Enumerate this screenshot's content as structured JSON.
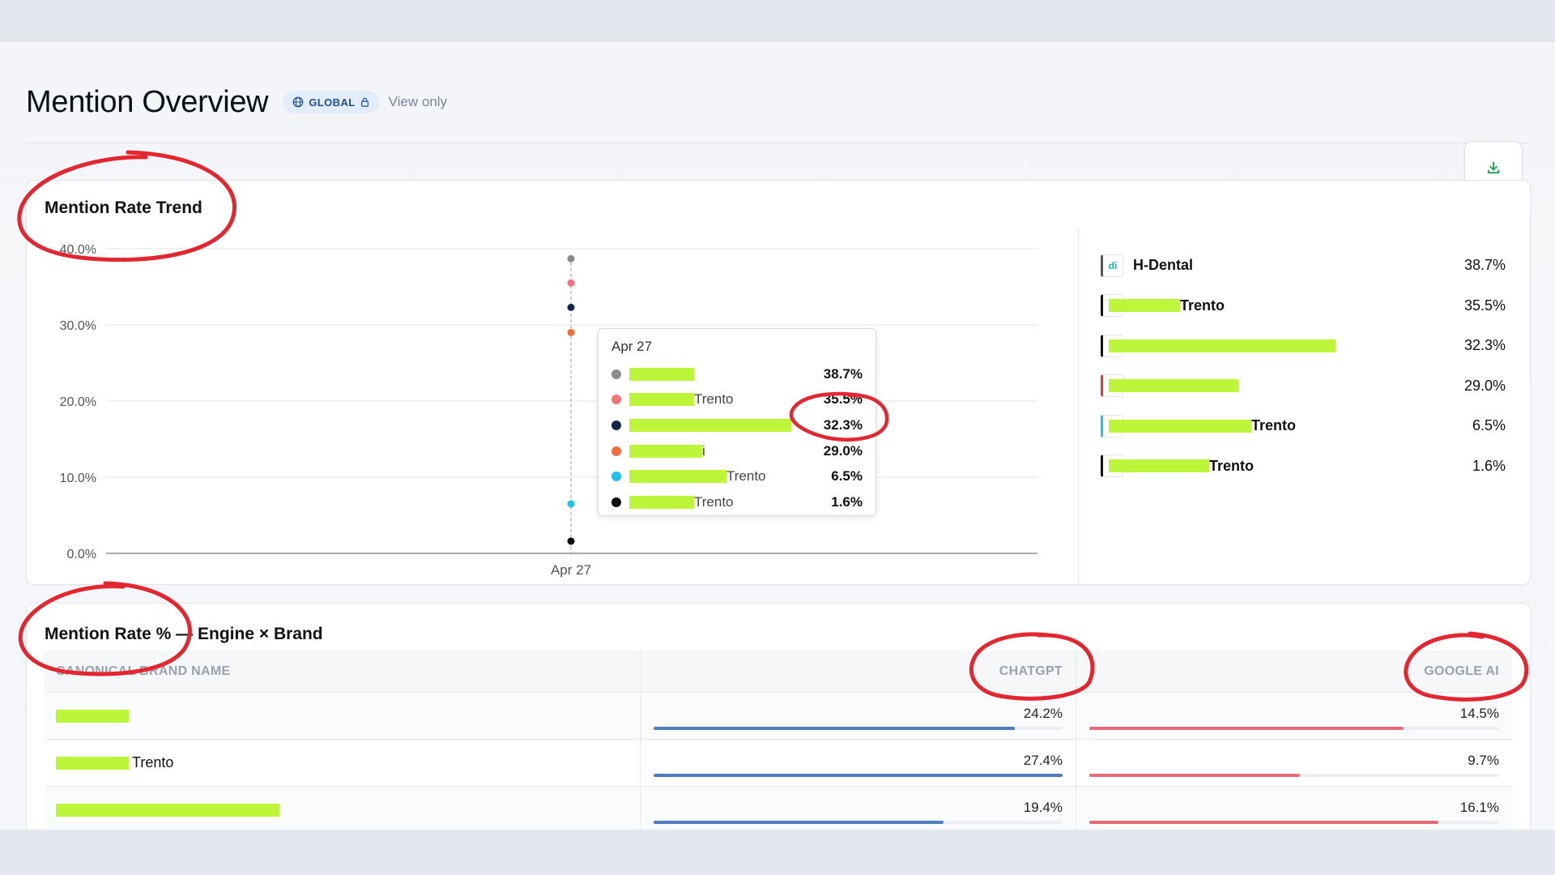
{
  "page": {
    "title": "Mention Overview",
    "scope_badge": "GLOBAL",
    "view_mode": "View only"
  },
  "icons": {
    "export": "download-icon",
    "scope": "globe-icon",
    "lock": "lock-icon"
  },
  "trend": {
    "title": "Mention Rate Trend",
    "tooltip_date": "Apr 27"
  },
  "chart_data": {
    "type": "scatter",
    "title": "Mention Rate Trend",
    "x": [
      "Apr 27"
    ],
    "yticks": [
      "40.0%",
      "30.0%",
      "20.0%",
      "10.0%",
      "0.0%"
    ],
    "ylim": [
      0,
      40
    ],
    "grid": true,
    "legend_position": "right",
    "series": [
      {
        "label_suffix": "",
        "value": 38.7,
        "value_label": "38.7%",
        "color": "#8c8c8c"
      },
      {
        "label_suffix": "Trento",
        "value": 35.5,
        "value_label": "35.5%",
        "color": "#f4717a"
      },
      {
        "label_suffix": "",
        "value": 32.3,
        "value_label": "32.3%",
        "color": "#13254a"
      },
      {
        "label_suffix": "i",
        "value": 29.0,
        "value_label": "29.0%",
        "color": "#f26b3a"
      },
      {
        "label_suffix": "Trento",
        "value": 6.5,
        "value_label": "6.5%",
        "color": "#1ec2e8"
      },
      {
        "label_suffix": "Trento",
        "value": 1.6,
        "value_label": "1.6%",
        "color": "#0b0b0b"
      }
    ]
  },
  "legend": [
    {
      "name": "H-Dental",
      "value": "38.7%",
      "logo": "di"
    },
    {
      "name": "Trento",
      "value": "35.5%",
      "logo": ""
    },
    {
      "name": "",
      "value": "32.3%",
      "logo": ""
    },
    {
      "name": "",
      "value": "29.0%",
      "logo": ""
    },
    {
      "name": "Trento",
      "value": "6.5%",
      "logo": ""
    },
    {
      "name": "Trento",
      "value": "1.6%",
      "logo": ""
    }
  ],
  "table": {
    "title": "Mention Rate % — Engine × Brand",
    "columns": [
      "CANONICAL BRAND NAME",
      "CHATGPT",
      "GOOGLE AI"
    ],
    "colors": {
      "chatgpt": "#4f7bbf",
      "google_ai": "#e86a78"
    },
    "rows": [
      {
        "brand": "",
        "chatgpt": "24.2%",
        "chatgpt_value": 24.2,
        "google_ai": "14.5%",
        "google_ai_value": 14.5
      },
      {
        "brand": "Trento",
        "chatgpt": "27.4%",
        "chatgpt_value": 27.4,
        "google_ai": "9.7%",
        "google_ai_value": 9.7
      },
      {
        "brand": "",
        "chatgpt": "19.4%",
        "chatgpt_value": 19.4,
        "google_ai": "16.1%",
        "google_ai_value": 16.1
      }
    ]
  }
}
